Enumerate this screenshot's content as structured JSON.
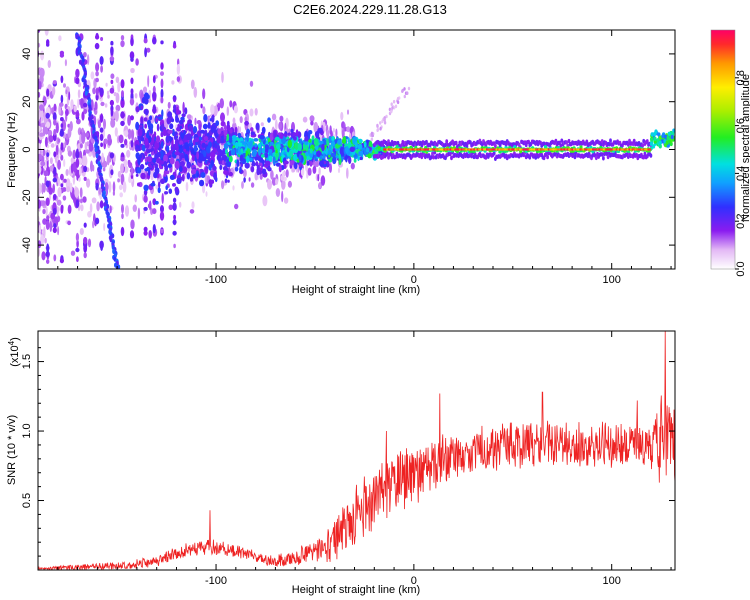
{
  "title": "C2E6.2024.229.11.28.G13",
  "chart_data": [
    {
      "type": "heatmap",
      "xlabel": "Height of straight line (km)",
      "ylabel": "Frequency (Hz)",
      "xlim": [
        -190,
        132
      ],
      "ylim": [
        -50,
        50
      ],
      "xticks": [
        -100,
        0,
        100
      ],
      "xtick_labels": [
        "-100",
        "0",
        "100"
      ],
      "yticks": [
        -40,
        -20,
        0,
        20,
        40
      ],
      "ytick_labels": [
        "-40",
        "-20",
        "0",
        "20",
        "40"
      ],
      "colorbar": {
        "label": "Normalized spectral amplitude",
        "range": [
          0,
          1
        ],
        "ticks": [
          0.0,
          0.2,
          0.4,
          0.6,
          0.8
        ],
        "tick_labels": [
          "0.0",
          "0.2",
          "0.4",
          "0.6",
          "0.8"
        ]
      },
      "features": [
        {
          "x": [
            -170,
            -150
          ],
          "y": [
            48,
            -50
          ],
          "amplitude": 0.2,
          "shape": "diagonal streak"
        },
        {
          "x": [
            -190,
            -30
          ],
          "y": [
            -50,
            50
          ],
          "amplitude": 0.1,
          "shape": "broad scatter"
        },
        {
          "x": [
            -95,
            -15
          ],
          "y": [
            -8,
            8
          ],
          "amplitude": 0.45,
          "shape": "converging band"
        },
        {
          "x": [
            -15,
            120
          ],
          "y": [
            0,
            0
          ],
          "amplitude": 0.95,
          "shape": "narrow band at 0 Hz"
        },
        {
          "x": [
            120,
            132
          ],
          "y": [
            2,
            8
          ],
          "amplitude": 0.55,
          "shape": "short rising band"
        }
      ]
    },
    {
      "type": "line",
      "xlabel": "Height of straight line (km)",
      "ylabel": "SNR (10 * v/v)",
      "y_multiplier": "(x10",
      "y_multiplier_exp": "4",
      "y_multiplier_close": ")",
      "xlim": [
        -190,
        132
      ],
      "ylim": [
        0,
        1.72
      ],
      "xticks": [
        -100,
        0,
        100
      ],
      "xtick_labels": [
        "-100",
        "0",
        "100"
      ],
      "yticks": [
        0.5,
        1.0,
        1.5
      ],
      "ytick_labels": [
        "0.5",
        "1.0",
        "1.5"
      ],
      "series": [
        {
          "color": "#ee2222",
          "envelope": {
            "x": [
              -190,
              -170,
              -150,
              -130,
              -120,
              -110,
              -100,
              -90,
              -80,
              -70,
              -60,
              -50,
              -40,
              -30,
              -20,
              -10,
              0,
              10,
              20,
              30,
              40,
              50,
              60,
              70,
              80,
              90,
              100,
              110,
              120,
              125,
              130
            ],
            "mean": [
              0.01,
              0.02,
              0.03,
              0.06,
              0.12,
              0.16,
              0.16,
              0.14,
              0.1,
              0.06,
              0.09,
              0.14,
              0.22,
              0.38,
              0.52,
              0.62,
              0.68,
              0.76,
              0.82,
              0.86,
              0.88,
              0.9,
              0.9,
              0.91,
              0.9,
              0.9,
              0.9,
              0.89,
              0.88,
              0.95,
              0.92
            ],
            "spread": [
              0.01,
              0.02,
              0.03,
              0.04,
              0.05,
              0.06,
              0.06,
              0.05,
              0.04,
              0.05,
              0.06,
              0.09,
              0.16,
              0.22,
              0.24,
              0.22,
              0.22,
              0.2,
              0.18,
              0.17,
              0.17,
              0.17,
              0.17,
              0.17,
              0.17,
              0.17,
              0.17,
              0.17,
              0.17,
              0.35,
              0.3
            ]
          },
          "peaks": [
            {
              "x": -103,
              "y": 0.43
            },
            {
              "x": -14,
              "y": 1.0
            },
            {
              "x": 13,
              "y": 1.27
            },
            {
              "x": 65,
              "y": 1.28
            },
            {
              "x": 113,
              "y": 1.22
            },
            {
              "x": 127,
              "y": 1.72
            }
          ]
        }
      ]
    }
  ]
}
